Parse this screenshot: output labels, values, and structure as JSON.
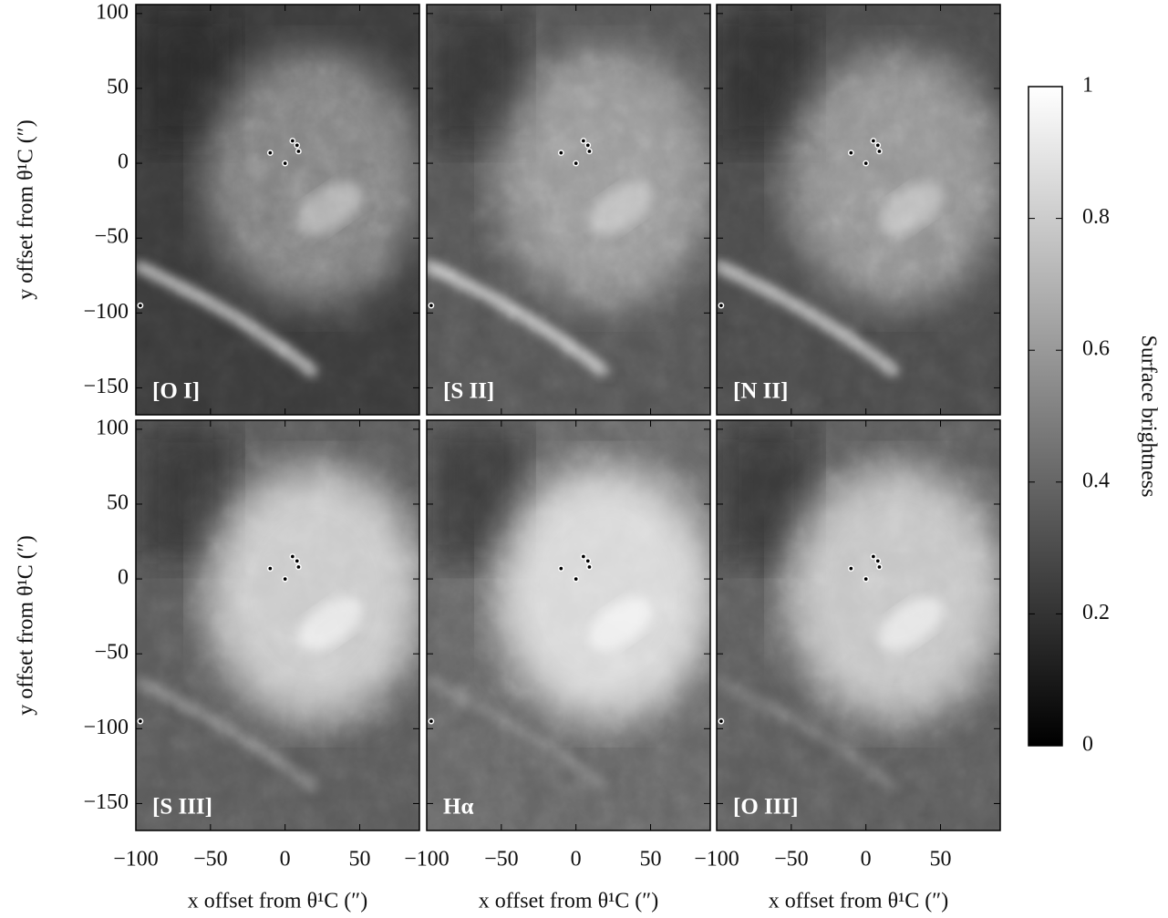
{
  "chart_data": {
    "type": "image",
    "panels": [
      {
        "label": "[O I]"
      },
      {
        "label": "[S II]"
      },
      {
        "label": "[N II]"
      },
      {
        "label": "[S III]"
      },
      {
        "label": "Hα"
      },
      {
        "label": "[O III]"
      }
    ],
    "xlabel": "x offset from θ¹C (″)",
    "ylabel": "y offset from θ¹C (″)",
    "xlim": [
      -100,
      90
    ],
    "ylim": [
      -168,
      106
    ],
    "xticks": [
      {
        "value": -100,
        "label": "−100"
      },
      {
        "value": -50,
        "label": "−50"
      },
      0,
      50
    ],
    "yticks": [
      100,
      50,
      0,
      {
        "value": -50,
        "label": "−50"
      },
      {
        "value": -100,
        "label": "−100"
      },
      {
        "value": -150,
        "label": "−150"
      }
    ],
    "stars": {
      "x": [
        -10,
        5,
        8,
        9,
        0,
        -97
      ],
      "y": [
        7,
        15,
        12,
        8,
        0,
        -95
      ]
    },
    "colorbar": {
      "label": "Surface brightness",
      "lim": [
        0,
        1
      ],
      "ticks": [
        0,
        0.2,
        0.4,
        0.6,
        0.8,
        1
      ]
    }
  }
}
